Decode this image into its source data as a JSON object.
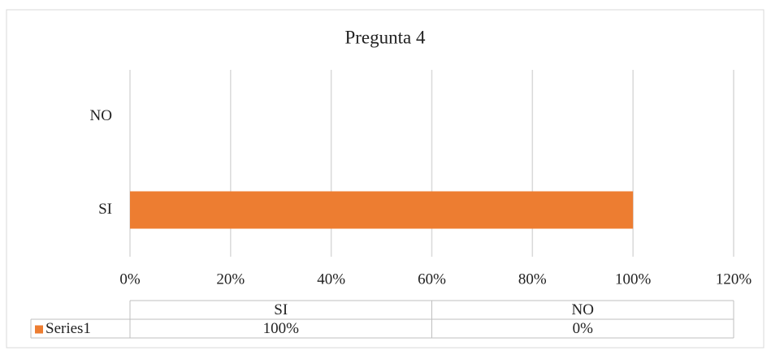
{
  "chart_data": {
    "type": "bar",
    "orientation": "horizontal",
    "title": "Pregunta 4",
    "categories": [
      "SI",
      "NO"
    ],
    "series": [
      {
        "name": "Series1",
        "color": "#ed7d31",
        "values": [
          100,
          0
        ],
        "value_labels": [
          "100%",
          "0%"
        ]
      }
    ],
    "xlim": [
      0,
      120
    ],
    "xticks": [
      {
        "value": 0,
        "label": "0%"
      },
      {
        "value": 20,
        "label": "20%"
      },
      {
        "value": 40,
        "label": "40%"
      },
      {
        "value": 60,
        "label": "60%"
      },
      {
        "value": 80,
        "label": "80%"
      },
      {
        "value": 100,
        "label": "100%"
      },
      {
        "value": 120,
        "label": "120%"
      }
    ],
    "grid": true,
    "data_table": true
  }
}
